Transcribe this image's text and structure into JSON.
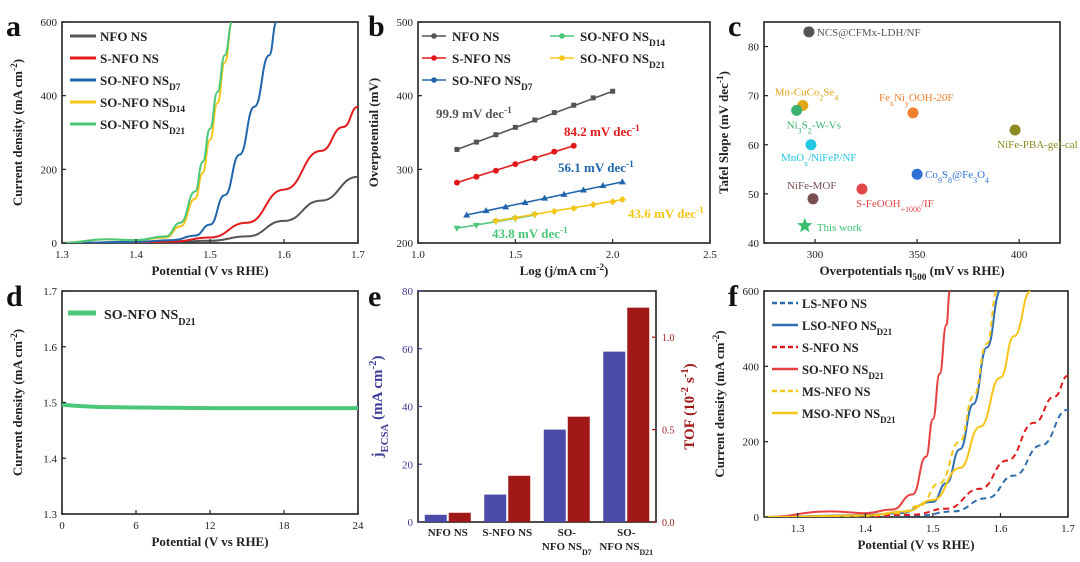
{
  "chart_data": [
    {
      "panel_label": "a",
      "type": "line",
      "xlabel": "Potential (V vs RHE)",
      "ylabel": "Current density (mA cm-2)",
      "xlim": [
        1.3,
        1.7
      ],
      "ylim": [
        0,
        600
      ],
      "xticks": [
        "1.3",
        "1.4",
        "1.5",
        "1.6",
        "1.7"
      ],
      "yticks": [
        "0",
        "200",
        "400",
        "600"
      ],
      "legend": [
        "NFO NS",
        "S-NFO NS",
        "SO-NFO NSD7",
        "SO-NFO NSD14",
        "SO-NFO NSD21"
      ],
      "series": [
        {
          "name": "NFO NS",
          "color": "#555555",
          "x": [
            1.3,
            1.4,
            1.45,
            1.5,
            1.55,
            1.6,
            1.65,
            1.7
          ],
          "y": [
            0,
            1,
            3,
            6,
            18,
            60,
            115,
            180
          ]
        },
        {
          "name": "S-NFO NS",
          "color": "#e31a1c",
          "x": [
            1.3,
            1.4,
            1.45,
            1.5,
            1.55,
            1.6,
            1.65,
            1.68,
            1.7
          ],
          "y": [
            0,
            1,
            4,
            15,
            55,
            145,
            250,
            315,
            370
          ]
        },
        {
          "name": "SO-NFO NSD7",
          "color": "#2166ac",
          "x": [
            1.3,
            1.4,
            1.45,
            1.48,
            1.5,
            1.52,
            1.54,
            1.56,
            1.58,
            1.59
          ],
          "y": [
            0,
            3,
            8,
            20,
            50,
            130,
            240,
            370,
            510,
            600
          ]
        },
        {
          "name": "SO-NFO NSD14",
          "color": "#f5c518",
          "x": [
            1.3,
            1.36,
            1.4,
            1.44,
            1.46,
            1.48,
            1.49,
            1.5,
            1.51,
            1.52,
            1.53
          ],
          "y": [
            0,
            10,
            8,
            15,
            45,
            120,
            190,
            280,
            380,
            490,
            600
          ]
        },
        {
          "name": "SO-NFO NSD21",
          "color": "#4cc77a",
          "x": [
            1.3,
            1.36,
            1.4,
            1.44,
            1.46,
            1.48,
            1.49,
            1.5,
            1.51,
            1.52,
            1.53
          ],
          "y": [
            0,
            10,
            8,
            18,
            55,
            140,
            220,
            310,
            410,
            510,
            600
          ]
        }
      ]
    },
    {
      "panel_label": "b",
      "type": "scatter",
      "xlabel": "Log (j/mA cm-2)",
      "ylabel": "Overpotential (mV)",
      "xlim": [
        1.0,
        2.5
      ],
      "ylim": [
        200,
        500
      ],
      "xticks": [
        "1.0",
        "1.5",
        "2.0",
        "2.5"
      ],
      "yticks": [
        "200",
        "300",
        "400",
        "500"
      ],
      "legend": [
        "NFO NS",
        "S-NFO NS",
        "SO-NFO NSD7",
        "SO-NFO NSD14",
        "SO-NFO NSD21"
      ],
      "series": [
        {
          "name": "NFO NS",
          "color": "#555555",
          "x": [
            1.2,
            1.3,
            1.4,
            1.5,
            1.6,
            1.7,
            1.8,
            1.9,
            2.0
          ],
          "y": [
            327,
            337,
            347,
            357,
            367,
            377,
            387,
            397,
            406
          ]
        },
        {
          "name": "S-NFO NS",
          "color": "#e31a1c",
          "x": [
            1.2,
            1.3,
            1.4,
            1.5,
            1.6,
            1.7,
            1.8
          ],
          "y": [
            282,
            290,
            298,
            307,
            315,
            324,
            332
          ]
        },
        {
          "name": "SO-NFO NSD7",
          "color": "#2166ac",
          "x": [
            1.25,
            1.35,
            1.45,
            1.55,
            1.65,
            1.75,
            1.85,
            1.95,
            2.05
          ],
          "y": [
            238,
            244,
            249,
            255,
            261,
            266,
            272,
            278,
            283
          ]
        },
        {
          "name": "SO-NFO NSD14",
          "color": "#4cc77a",
          "x": [
            1.2,
            1.3,
            1.4,
            1.5,
            1.6
          ],
          "y": [
            220,
            224,
            229,
            233,
            238
          ]
        },
        {
          "name": "SO-NFO NSD21",
          "color": "#f5c518",
          "x": [
            1.4,
            1.5,
            1.6,
            1.7,
            1.8,
            1.9,
            2.0,
            2.05
          ],
          "y": [
            230,
            234,
            239,
            243,
            247,
            252,
            256,
            259
          ]
        }
      ],
      "annotations": [
        "99.9 mV dec-1",
        "84.2 mV dec-1",
        "56.1 mV dec-1",
        "43.6 mV dec-1",
        "43.8 mV dec-1"
      ]
    },
    {
      "panel_label": "c",
      "type": "scatter",
      "xlabel": "Overpotentials η500 (mV vs RHE)",
      "ylabel": "Tafel Slope (mV dec-1)",
      "xlim": [
        275,
        420
      ],
      "ylim": [
        40,
        85
      ],
      "xticks": [
        "300",
        "350",
        "400"
      ],
      "yticks": [
        "40",
        "50",
        "60",
        "70",
        "80"
      ],
      "points": [
        {
          "label": "NCS@CFMx-LDH/NF",
          "x": 297,
          "y": 83,
          "color": "#555555"
        },
        {
          "label": "Mn-CuCo2Se4",
          "x": 294,
          "y": 68,
          "color": "#e0a818"
        },
        {
          "label": "Ni3S2-W-Vs",
          "x": 291,
          "y": 67,
          "color": "#3cb371"
        },
        {
          "label": "FexNiyOOH-20F",
          "x": 348,
          "y": 66.5,
          "color": "#f08030"
        },
        {
          "label": "NiFe-PBA-gel-cal",
          "x": 398,
          "y": 63,
          "color": "#8a8a1e"
        },
        {
          "label": "MnOx/NiFeP/NF",
          "x": 298,
          "y": 60,
          "color": "#22c8e0"
        },
        {
          "label": "Co9S8@Fe3O4",
          "x": 350,
          "y": 54,
          "color": "#2f6fd6"
        },
        {
          "label": "NiFe-MOF",
          "x": 299,
          "y": 49,
          "color": "#7a4f4f"
        },
        {
          "label": "S-FeOOH+1000/IF",
          "x": 323,
          "y": 51,
          "color": "#e04848"
        },
        {
          "label": "This work",
          "x": 295,
          "y": 43.5,
          "color": "#3cc070",
          "marker": "star"
        }
      ]
    },
    {
      "panel_label": "d",
      "type": "line",
      "xlabel": "Potential (V vs RHE)",
      "ylabel": "Current density (mA cm-2)",
      "xlim": [
        0,
        24
      ],
      "ylim": [
        1.3,
        1.7
      ],
      "xticks": [
        "0",
        "6",
        "12",
        "18",
        "24"
      ],
      "yticks": [
        "1.3",
        "1.4",
        "1.5",
        "1.6",
        "1.7"
      ],
      "legend": [
        "SO-NFO NSD21"
      ],
      "series": [
        {
          "name": "SO-NFO NSD21",
          "color": "#4cc77a",
          "x": [
            0,
            1,
            3,
            6,
            12,
            18,
            24
          ],
          "y": [
            1.496,
            1.494,
            1.492,
            1.491,
            1.49,
            1.49,
            1.49
          ]
        }
      ]
    },
    {
      "panel_label": "e",
      "type": "bar",
      "categories": [
        "NFO NS",
        "S-NFO NS",
        "SO-NFO NSD7",
        "SO-NFO NSD21"
      ],
      "ylabel": "jECSA (mA cm-2)",
      "y2label": "TOF (10-2 s-1)",
      "ylim": [
        0,
        80
      ],
      "y2lim": [
        0,
        1.25
      ],
      "yticks": [
        "0",
        "20",
        "40",
        "60",
        "80"
      ],
      "y2ticks": [
        "0.0",
        "0.5",
        "1.0"
      ],
      "series": [
        {
          "name": "jECSA",
          "axis": "left",
          "color": "#4a4aa8",
          "values": [
            2.5,
            9.5,
            32,
            59
          ]
        },
        {
          "name": "TOF",
          "axis": "right",
          "color": "#a01818",
          "values": [
            0.05,
            0.25,
            0.57,
            1.16
          ]
        }
      ]
    },
    {
      "panel_label": "f",
      "type": "line",
      "xlabel": "Potential (V vs RHE)",
      "ylabel": "Current density (mA cm-2)",
      "xlim": [
        1.25,
        1.7
      ],
      "ylim": [
        0,
        600
      ],
      "xticks": [
        "1.3",
        "1.4",
        "1.5",
        "1.6",
        "1.7"
      ],
      "yticks": [
        "0",
        "200",
        "400",
        "600"
      ],
      "legend": [
        "LS-NFO NS",
        "LSO-NFO NSD21",
        "S-NFO NS",
        "SO-NFO NSD21",
        "MS-NFO NS",
        "MSO-NFO NSD21"
      ],
      "series": [
        {
          "name": "LS-NFO NS",
          "color": "#2f6fb0",
          "dash": "dashed",
          "x": [
            1.25,
            1.4,
            1.48,
            1.53,
            1.58,
            1.62,
            1.66,
            1.7
          ],
          "y": [
            0,
            1,
            4,
            15,
            50,
            110,
            190,
            285
          ]
        },
        {
          "name": "LSO-NFO NSD21",
          "color": "#2f6fb0",
          "dash": "solid",
          "x": [
            1.25,
            1.4,
            1.45,
            1.5,
            1.52,
            1.54,
            1.56,
            1.58,
            1.6
          ],
          "y": [
            0,
            5,
            10,
            40,
            90,
            180,
            300,
            450,
            600
          ]
        },
        {
          "name": "S-NFO NS",
          "color": "#e31a1c",
          "dash": "dashed",
          "x": [
            1.25,
            1.4,
            1.47,
            1.52,
            1.57,
            1.61,
            1.65,
            1.68,
            1.7
          ],
          "y": [
            0,
            2,
            6,
            22,
            75,
            150,
            250,
            320,
            375
          ]
        },
        {
          "name": "SO-NFO NSD21",
          "color": "#e84040",
          "dash": "solid",
          "x": [
            1.25,
            1.35,
            1.4,
            1.44,
            1.47,
            1.49,
            1.5,
            1.51,
            1.52,
            1.525
          ],
          "y": [
            0,
            15,
            10,
            20,
            60,
            160,
            260,
            380,
            510,
            600
          ]
        },
        {
          "name": "MS-NFO NS",
          "color": "#f5c518",
          "dash": "dashed",
          "x": [
            1.25,
            1.4,
            1.45,
            1.48,
            1.51,
            1.54,
            1.56,
            1.58,
            1.595
          ],
          "y": [
            0,
            3,
            10,
            30,
            90,
            200,
            320,
            460,
            600
          ]
        },
        {
          "name": "MSO-NFO NSD21",
          "color": "#f5c518",
          "dash": "solid",
          "x": [
            1.25,
            1.4,
            1.46,
            1.5,
            1.54,
            1.57,
            1.6,
            1.62,
            1.645
          ],
          "y": [
            0,
            4,
            15,
            45,
            130,
            240,
            370,
            480,
            600
          ]
        }
      ]
    }
  ]
}
